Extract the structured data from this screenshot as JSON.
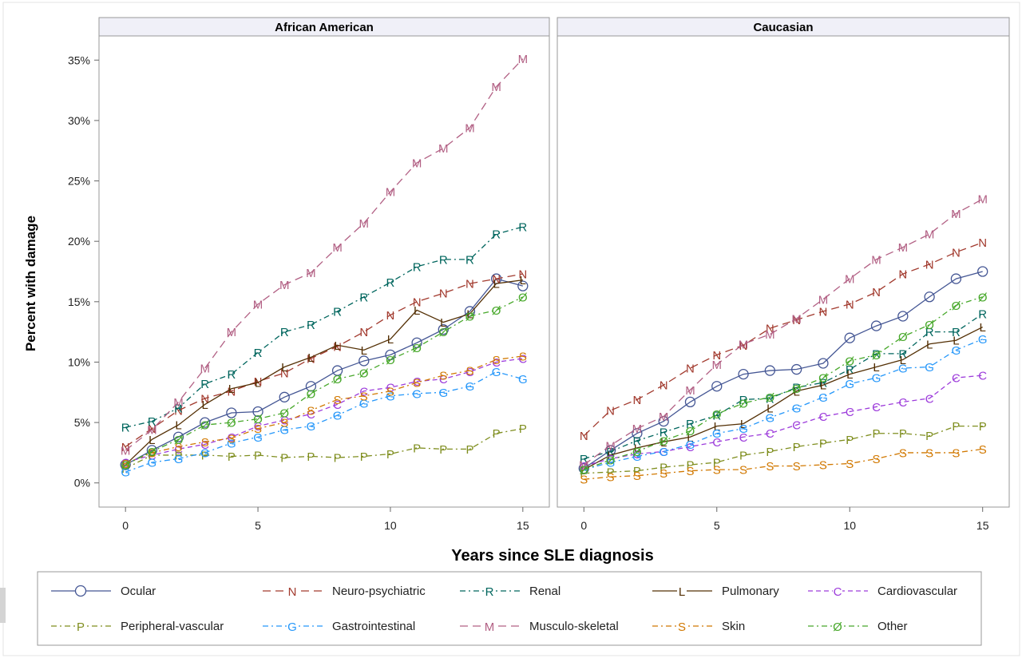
{
  "chart_data": {
    "type": "line",
    "xlabel": "Years since SLE diagnosis",
    "ylabel": "Percent with damage",
    "xlim": [
      -1,
      16
    ],
    "ylim": [
      -2,
      37
    ],
    "xticks": [
      0,
      5,
      10,
      15
    ],
    "yticks": [
      0,
      5,
      10,
      15,
      20,
      25,
      30,
      35
    ],
    "ytick_format": "%",
    "grid": false,
    "legend_position": "bottom",
    "x": [
      0,
      1,
      2,
      3,
      4,
      5,
      6,
      7,
      8,
      9,
      10,
      11,
      12,
      13,
      14,
      15
    ],
    "series_styles": [
      {
        "name": "Ocular",
        "marker": "O",
        "color": "#445694",
        "dash": "solid"
      },
      {
        "name": "Neuro-psychiatric",
        "marker": "N",
        "color": "#a23a2e",
        "dash": "long"
      },
      {
        "name": "Renal",
        "marker": "R",
        "color": "#01665e",
        "dash": "dashdot"
      },
      {
        "name": "Pulmonary",
        "marker": "L",
        "color": "#543005",
        "dash": "solid"
      },
      {
        "name": "Cardiovascular",
        "marker": "C",
        "color": "#9d3cdb",
        "dash": "dash"
      },
      {
        "name": "Peripheral-vascular",
        "marker": "P",
        "color": "#7f8e1f",
        "dash": "dashdot"
      },
      {
        "name": "Gastrointestinal",
        "marker": "G",
        "color": "#2597fa",
        "dash": "dashdot"
      },
      {
        "name": "Musculo-skeletal",
        "marker": "M",
        "color": "#b26084",
        "dash": "long"
      },
      {
        "name": "Skin",
        "marker": "S",
        "color": "#d17800",
        "dash": "dashdot"
      },
      {
        "name": "Other",
        "marker": "Ø",
        "color": "#47a82a",
        "dash": "dashdot"
      }
    ],
    "panels": [
      {
        "title": "African American",
        "series": [
          {
            "name": "Ocular",
            "values": [
              1.5,
              2.7,
              3.8,
              5.0,
              5.8,
              5.9,
              7.1,
              8.0,
              9.3,
              10.1,
              10.6,
              11.6,
              12.7,
              14.2,
              16.9,
              16.3
            ]
          },
          {
            "name": "Neuro-psychiatric",
            "values": [
              3.0,
              4.5,
              6.0,
              7.0,
              7.6,
              8.4,
              9.1,
              10.3,
              11.3,
              12.5,
              13.9,
              15.0,
              15.7,
              16.5,
              16.9,
              17.3
            ]
          },
          {
            "name": "Renal",
            "values": [
              4.6,
              5.1,
              6.2,
              8.2,
              9.0,
              10.8,
              12.5,
              13.1,
              14.2,
              15.4,
              16.6,
              17.9,
              18.5,
              18.5,
              20.6,
              21.2
            ]
          },
          {
            "name": "Pulmonary",
            "values": [
              1.5,
              3.6,
              4.8,
              6.5,
              7.8,
              8.3,
              9.6,
              10.4,
              11.4,
              11.0,
              11.9,
              14.3,
              13.3,
              14.0,
              16.5,
              16.8
            ]
          },
          {
            "name": "Cardiovascular",
            "values": [
              1.7,
              2.3,
              2.8,
              3.2,
              3.8,
              4.7,
              5.2,
              5.7,
              6.5,
              7.6,
              7.9,
              8.4,
              8.6,
              9.2,
              10.0,
              10.3
            ]
          },
          {
            "name": "Peripheral-vascular",
            "values": [
              1.2,
              2.3,
              2.3,
              2.3,
              2.2,
              2.3,
              2.1,
              2.2,
              2.1,
              2.2,
              2.4,
              2.9,
              2.8,
              2.8,
              4.1,
              4.5
            ]
          },
          {
            "name": "Gastrointestinal",
            "values": [
              0.9,
              1.7,
              2.0,
              2.5,
              3.3,
              3.8,
              4.4,
              4.7,
              5.6,
              6.6,
              7.2,
              7.4,
              7.5,
              8.0,
              9.2,
              8.6
            ]
          },
          {
            "name": "Musculo-skeletal",
            "values": [
              2.7,
              4.4,
              6.7,
              9.5,
              12.5,
              14.8,
              16.4,
              17.4,
              19.5,
              21.5,
              24.1,
              26.5,
              27.7,
              29.4,
              32.8,
              35.1
            ]
          },
          {
            "name": "Skin",
            "values": [
              1.6,
              2.5,
              3.0,
              3.4,
              3.7,
              4.5,
              5.0,
              6.0,
              6.9,
              7.2,
              7.6,
              8.3,
              8.9,
              9.3,
              10.2,
              10.5
            ]
          },
          {
            "name": "Other",
            "values": [
              1.5,
              2.6,
              3.6,
              4.8,
              5.0,
              5.3,
              5.8,
              7.4,
              8.6,
              9.1,
              10.2,
              11.2,
              12.5,
              13.8,
              14.3,
              15.4
            ]
          }
        ]
      },
      {
        "title": "Caucasian",
        "series": [
          {
            "name": "Ocular",
            "values": [
              1.2,
              2.7,
              4.1,
              5.1,
              6.7,
              8.0,
              9.0,
              9.3,
              9.4,
              9.9,
              12.0,
              13.0,
              13.8,
              15.4,
              16.9,
              17.5
            ]
          },
          {
            "name": "Neuro-psychiatric",
            "values": [
              3.9,
              6.0,
              6.9,
              8.1,
              9.5,
              10.6,
              11.4,
              12.8,
              13.5,
              14.2,
              14.8,
              15.8,
              17.3,
              18.1,
              19.1,
              19.9
            ]
          },
          {
            "name": "Renal",
            "values": [
              2.0,
              2.6,
              3.5,
              4.2,
              4.9,
              5.6,
              6.9,
              7.0,
              7.9,
              8.3,
              9.4,
              10.7,
              10.7,
              12.5,
              12.5,
              14.0
            ]
          },
          {
            "name": "Pulmonary",
            "values": [
              1.1,
              2.3,
              2.9,
              3.4,
              3.8,
              4.7,
              4.9,
              6.2,
              7.6,
              8.1,
              9.0,
              9.6,
              10.2,
              11.5,
              11.8,
              12.9
            ]
          },
          {
            "name": "Cardiovascular",
            "values": [
              1.4,
              2.0,
              2.4,
              2.6,
              3.0,
              3.4,
              3.8,
              4.1,
              4.8,
              5.5,
              5.9,
              6.3,
              6.7,
              7.0,
              8.7,
              8.9
            ]
          },
          {
            "name": "Peripheral-vascular",
            "values": [
              0.8,
              0.9,
              1.0,
              1.3,
              1.5,
              1.7,
              2.3,
              2.6,
              3.0,
              3.3,
              3.6,
              4.1,
              4.1,
              3.9,
              4.7,
              4.7
            ]
          },
          {
            "name": "Gastrointestinal",
            "values": [
              1.1,
              1.7,
              2.2,
              2.6,
              3.2,
              4.1,
              4.5,
              5.4,
              6.2,
              7.1,
              8.2,
              8.7,
              9.5,
              9.6,
              11.0,
              11.9
            ]
          },
          {
            "name": "Musculo-skeletal",
            "values": [
              1.5,
              3.1,
              4.5,
              5.5,
              7.7,
              9.8,
              11.5,
              12.3,
              13.6,
              15.2,
              16.9,
              18.5,
              19.5,
              20.6,
              22.3,
              23.5
            ]
          },
          {
            "name": "Skin",
            "values": [
              0.3,
              0.5,
              0.6,
              0.8,
              1.0,
              1.1,
              1.1,
              1.4,
              1.4,
              1.5,
              1.6,
              2.0,
              2.5,
              2.5,
              2.5,
              2.8
            ]
          },
          {
            "name": "Other",
            "values": [
              1.1,
              1.9,
              2.6,
              3.5,
              4.3,
              5.7,
              6.6,
              7.1,
              7.8,
              8.7,
              10.1,
              10.6,
              12.1,
              13.1,
              14.7,
              15.4
            ]
          }
        ]
      }
    ]
  }
}
